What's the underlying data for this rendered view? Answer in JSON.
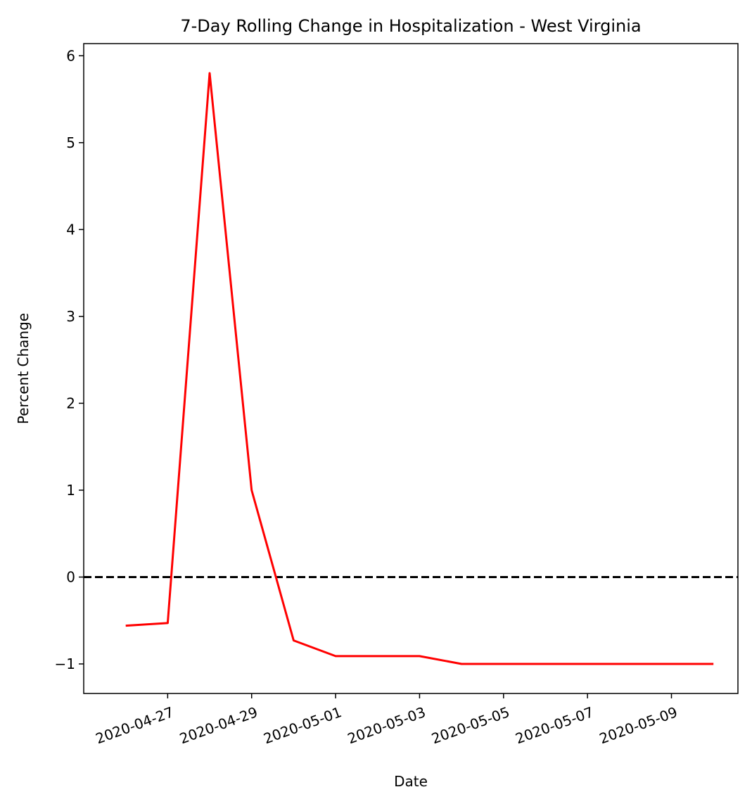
{
  "chart_data": {
    "type": "line",
    "title": "7-Day Rolling Change in Hospitalization - West Virginia",
    "xlabel": "Date",
    "ylabel": "Percent Change",
    "x_ticks": [
      "2020-04-27",
      "2020-04-29",
      "2020-05-01",
      "2020-05-03",
      "2020-05-05",
      "2020-05-07",
      "2020-05-09"
    ],
    "y_ticks": [
      -1,
      0,
      1,
      2,
      3,
      4,
      5,
      6
    ],
    "ylim": [
      -1.34,
      6.14
    ],
    "xlim": [
      "2020-04-25T00:00",
      "2020-05-10T14:00"
    ],
    "series": [
      {
        "color": "#ff0000",
        "x": [
          "2020-04-26",
          "2020-04-27",
          "2020-04-28",
          "2020-04-29",
          "2020-04-30",
          "2020-05-01",
          "2020-05-02",
          "2020-05-03",
          "2020-05-04",
          "2020-05-05",
          "2020-05-06",
          "2020-05-07",
          "2020-05-08",
          "2020-05-09",
          "2020-05-10"
        ],
        "values": [
          -0.56,
          -0.53,
          5.8,
          1.0,
          -0.73,
          -0.91,
          -0.91,
          -0.91,
          -1.0,
          -1.0,
          -1.0,
          -1.0,
          -1.0,
          -1.0,
          -1.0
        ]
      }
    ],
    "reference_line": {
      "y": 0,
      "style": "dashed",
      "color": "#000000"
    },
    "grid": false
  }
}
